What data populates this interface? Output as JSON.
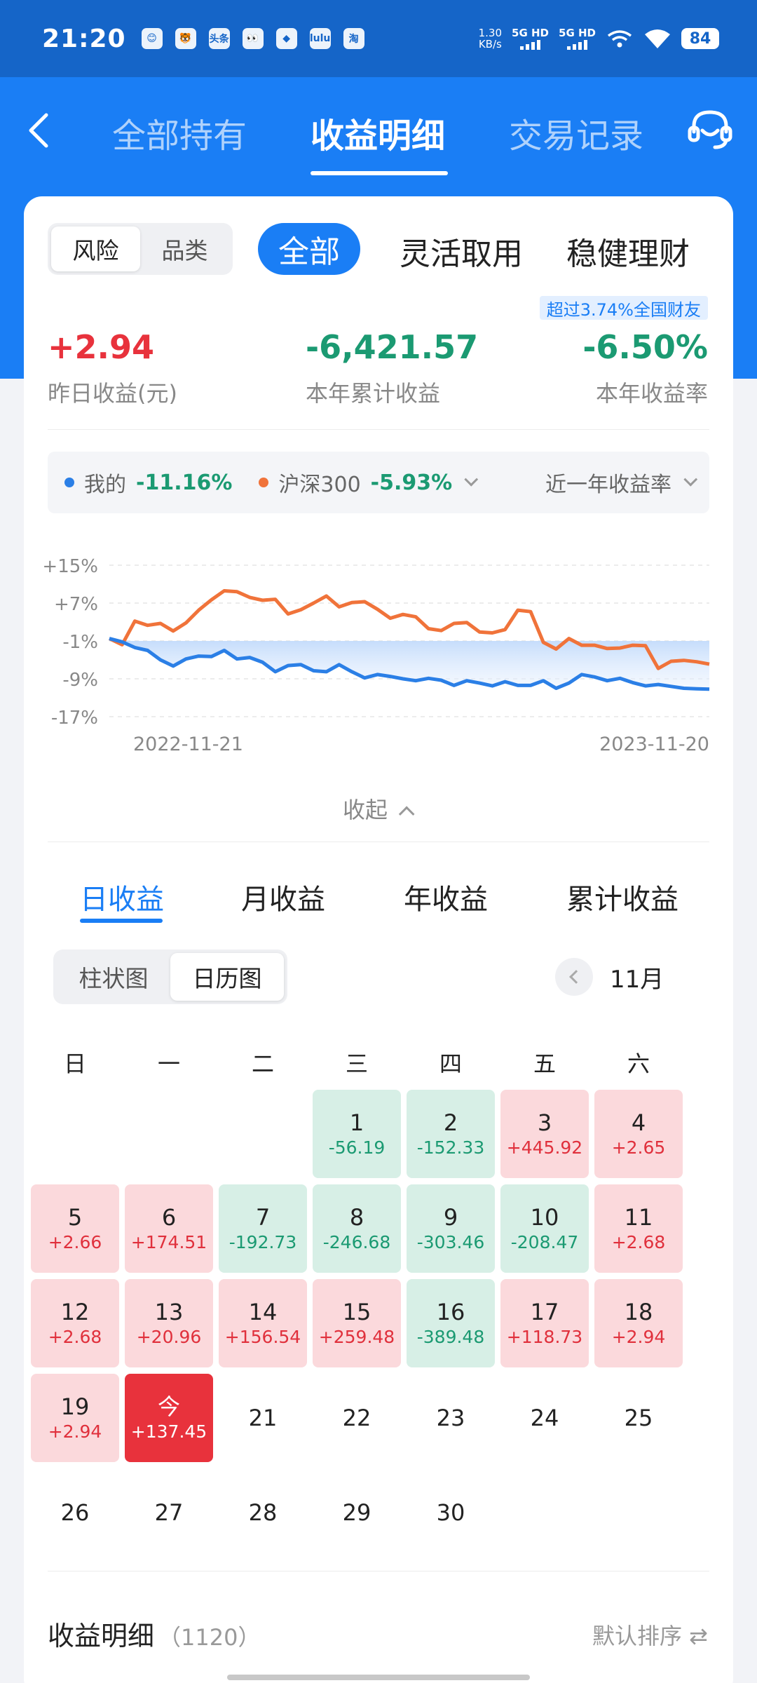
{
  "status_bar": {
    "time": "21:20",
    "apps": [
      "😊",
      "🐯",
      "头条",
      "👀",
      "◆",
      "lulu",
      "淘"
    ],
    "net_speed": "1.30",
    "net_unit": "KB/s",
    "signal1": "5G HD",
    "signal2": "5G HD",
    "battery": "84"
  },
  "nav": {
    "tabs": [
      "全部持有",
      "收益明细",
      "交易记录"
    ],
    "active_tab": "收益明细"
  },
  "filters": {
    "seg": [
      "风险",
      "品类"
    ],
    "categories": [
      "全部",
      "灵活取用",
      "稳健理财"
    ]
  },
  "badge": "超过3.74%全国财友",
  "metrics": [
    {
      "value": "+2.94",
      "label": "昨日收益(元)",
      "color": "#e8323c"
    },
    {
      "value": "-6,421.57",
      "label": "本年累计收益",
      "color": "#1b9a72"
    },
    {
      "value": "-6.50%",
      "label": "本年收益率",
      "color": "#1b9a72"
    }
  ],
  "legend": {
    "mine_label": "我的",
    "mine_value": "-11.16%",
    "mine_color": "#2b7fe6",
    "bench_label": "沪深300",
    "bench_value": "-5.93%",
    "bench_color": "#f0733a",
    "period": "近一年收益率"
  },
  "chart_data": {
    "type": "line",
    "y_ticks": [
      "+15%",
      "+7%",
      "-1%",
      "-9%",
      "-17%"
    ],
    "ylim": [
      -17,
      15
    ],
    "x_labels": [
      "2022-11-21",
      "2023-11-20"
    ],
    "series": [
      {
        "name": "我的",
        "color": "#2b7fe6",
        "values": [
          -0.5,
          -1.2,
          -2.4,
          -3.0,
          -5.0,
          -6.3,
          -4.8,
          -4.2,
          -4.3,
          -3.0,
          -4.8,
          -4.5,
          -5.5,
          -7.5,
          -6.2,
          -6.0,
          -7.3,
          -7.5,
          -6.0,
          -7.5,
          -8.8,
          -8.1,
          -8.5,
          -9.0,
          -9.4,
          -8.9,
          -9.3,
          -10.4,
          -9.4,
          -9.9,
          -10.5,
          -9.6,
          -10.4,
          -10.4,
          -9.4,
          -11.0,
          -9.9,
          -8.1,
          -8.6,
          -9.4,
          -8.9,
          -9.8,
          -10.5,
          -10.2,
          -10.6,
          -11.0,
          -11.1,
          -11.2
        ]
      },
      {
        "name": "沪深300",
        "color": "#f0733a",
        "values": [
          -0.5,
          -1.8,
          3.2,
          2.3,
          2.7,
          1.1,
          2.8,
          5.5,
          7.7,
          9.6,
          9.4,
          8.2,
          7.6,
          7.8,
          4.7,
          5.6,
          7.0,
          8.5,
          6.2,
          7.1,
          7.3,
          5.7,
          3.8,
          4.6,
          4.1,
          1.6,
          1.2,
          2.7,
          2.9,
          0.9,
          0.7,
          1.4,
          5.5,
          5.2,
          -1.3,
          -2.7,
          -0.5,
          -1.9,
          -1.9,
          -2.6,
          -2.5,
          -1.9,
          -2.0,
          -6.8,
          -5.3,
          -5.1,
          -5.4,
          -5.9
        ]
      }
    ]
  },
  "collapse_label": "收起",
  "period_tabs": [
    "日收益",
    "月收益",
    "年收益",
    "累计收益"
  ],
  "view_seg": [
    "柱状图",
    "日历图"
  ],
  "month": "11月",
  "weekdays": [
    "日",
    "一",
    "二",
    "三",
    "四",
    "五",
    "六"
  ],
  "calendar": {
    "start_col": 3,
    "days": [
      {
        "d": "1",
        "v": "-56.19",
        "t": "neg"
      },
      {
        "d": "2",
        "v": "-152.33",
        "t": "neg"
      },
      {
        "d": "3",
        "v": "+445.92",
        "t": "pos"
      },
      {
        "d": "4",
        "v": "+2.65",
        "t": "pos"
      },
      {
        "d": "5",
        "v": "+2.66",
        "t": "pos"
      },
      {
        "d": "6",
        "v": "+174.51",
        "t": "pos"
      },
      {
        "d": "7",
        "v": "-192.73",
        "t": "neg"
      },
      {
        "d": "8",
        "v": "-246.68",
        "t": "neg"
      },
      {
        "d": "9",
        "v": "-303.46",
        "t": "neg"
      },
      {
        "d": "10",
        "v": "-208.47",
        "t": "neg"
      },
      {
        "d": "11",
        "v": "+2.68",
        "t": "pos"
      },
      {
        "d": "12",
        "v": "+2.68",
        "t": "pos"
      },
      {
        "d": "13",
        "v": "+20.96",
        "t": "pos"
      },
      {
        "d": "14",
        "v": "+156.54",
        "t": "pos"
      },
      {
        "d": "15",
        "v": "+259.48",
        "t": "pos"
      },
      {
        "d": "16",
        "v": "-389.48",
        "t": "neg"
      },
      {
        "d": "17",
        "v": "+118.73",
        "t": "pos"
      },
      {
        "d": "18",
        "v": "+2.94",
        "t": "pos"
      },
      {
        "d": "19",
        "v": "+2.94",
        "t": "pos"
      },
      {
        "d": "今",
        "v": "+137.45",
        "t": "today"
      },
      {
        "d": "21",
        "v": "",
        "t": "none"
      },
      {
        "d": "22",
        "v": "",
        "t": "none"
      },
      {
        "d": "23",
        "v": "",
        "t": "none"
      },
      {
        "d": "24",
        "v": "",
        "t": "none"
      },
      {
        "d": "25",
        "v": "",
        "t": "none"
      },
      {
        "d": "26",
        "v": "",
        "t": "none"
      },
      {
        "d": "27",
        "v": "",
        "t": "none"
      },
      {
        "d": "28",
        "v": "",
        "t": "none"
      },
      {
        "d": "29",
        "v": "",
        "t": "none"
      },
      {
        "d": "30",
        "v": "",
        "t": "none"
      }
    ]
  },
  "detail": {
    "title": "收益明细",
    "count": "（1120）",
    "sort": "默认排序 ⇄"
  }
}
